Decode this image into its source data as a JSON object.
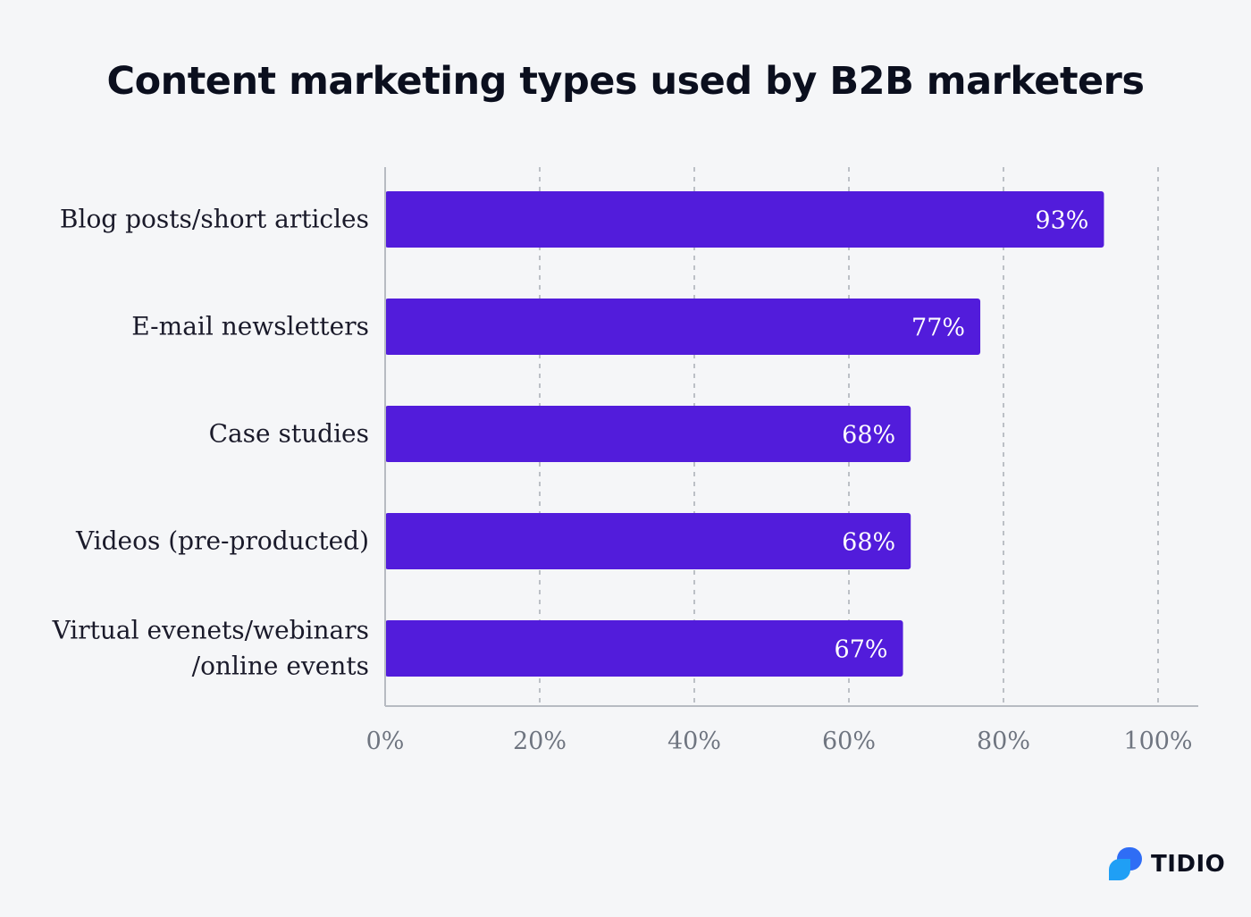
{
  "colors": {
    "background": "#f5f6f8",
    "bar": "#521cdb",
    "bar_label": "#ffffff",
    "title": "#0b0f1e",
    "category_label": "#1a1a2a",
    "tick_label": "#6f7580",
    "grid": "#a9adb5",
    "axis": "#b7bbc2",
    "brand_logo_front": "#1f9ff5",
    "brand_logo_back": "#2f6df5"
  },
  "chart_data": {
    "type": "bar",
    "orientation": "horizontal",
    "title": "Content marketing types used by B2B marketers",
    "categories": [
      [
        "Blog posts/short articles"
      ],
      [
        "E-mail newsletters"
      ],
      [
        "Case studies"
      ],
      [
        "Videos (pre-producted)"
      ],
      [
        "Virtual evenets/webinars",
        "/online events"
      ]
    ],
    "values": [
      93,
      77,
      68,
      68,
      67
    ],
    "value_labels": [
      "93%",
      "77%",
      "68%",
      "68%",
      "67%"
    ],
    "xlim": [
      0,
      100
    ],
    "x_ticks": [
      0,
      20,
      40,
      60,
      80,
      100
    ],
    "x_tick_labels": [
      "0%",
      "20%",
      "40%",
      "60%",
      "80%",
      "100%"
    ],
    "xlabel": "",
    "ylabel": "",
    "grid": "vertical-dashed",
    "legend": "none"
  },
  "brand": {
    "name": "TIDIO",
    "logo_icon": "tidio-chat-bubble-icon"
  }
}
